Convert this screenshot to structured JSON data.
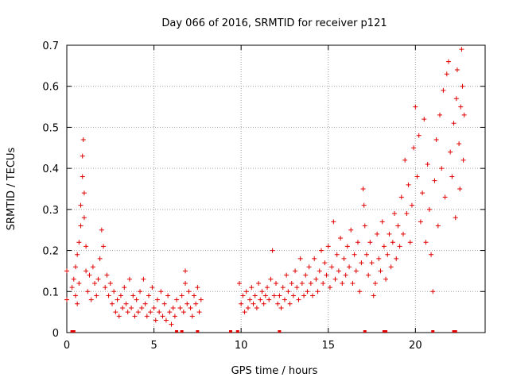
{
  "chart_data": {
    "type": "scatter",
    "title": "Day 066 of 2016, SRMTID for receiver p121",
    "xlabel": "GPS time / hours",
    "ylabel": "SRMTID / TECUs",
    "xlim": [
      0,
      24
    ],
    "ylim": [
      0,
      0.7
    ],
    "grid": true,
    "marker": "+",
    "color": "#e00000",
    "x_ticks": [
      0,
      5,
      10,
      15,
      20
    ],
    "x_tick_labels": [
      "0",
      "5",
      "10",
      "15",
      "20"
    ],
    "y_ticks": [
      0,
      0.1,
      0.2,
      0.3,
      0.4,
      0.5,
      0.6,
      0.7
    ],
    "y_tick_labels": [
      "0",
      "0.1",
      "0.2",
      "0.3",
      "0.4",
      "0.5",
      "0.6",
      "0.7"
    ],
    "series": [
      {
        "name": "SRMTID",
        "points": [
          [
            0.0,
            0.15
          ],
          [
            0.0,
            0.08
          ],
          [
            0.3,
            0.11
          ],
          [
            0.4,
            0.13
          ],
          [
            0.5,
            0.09
          ],
          [
            0.5,
            0.16
          ],
          [
            0.6,
            0.07
          ],
          [
            0.6,
            0.19
          ],
          [
            0.7,
            0.22
          ],
          [
            0.7,
            0.12
          ],
          [
            0.8,
            0.26
          ],
          [
            0.8,
            0.31
          ],
          [
            0.9,
            0.38
          ],
          [
            0.9,
            0.43
          ],
          [
            0.95,
            0.47
          ],
          [
            1.0,
            0.34
          ],
          [
            1.0,
            0.28
          ],
          [
            1.1,
            0.21
          ],
          [
            1.1,
            0.15
          ],
          [
            1.2,
            0.1
          ],
          [
            1.3,
            0.14
          ],
          [
            1.4,
            0.08
          ],
          [
            1.5,
            0.16
          ],
          [
            1.6,
            0.12
          ],
          [
            1.7,
            0.09
          ],
          [
            1.8,
            0.13
          ],
          [
            1.9,
            0.18
          ],
          [
            2.0,
            0.25
          ],
          [
            2.1,
            0.21
          ],
          [
            2.2,
            0.11
          ],
          [
            2.3,
            0.14
          ],
          [
            2.4,
            0.09
          ],
          [
            2.5,
            0.12
          ],
          [
            2.6,
            0.07
          ],
          [
            2.7,
            0.1
          ],
          [
            2.8,
            0.05
          ],
          [
            2.9,
            0.08
          ],
          [
            3.0,
            0.04
          ],
          [
            3.1,
            0.09
          ],
          [
            3.2,
            0.06
          ],
          [
            3.3,
            0.11
          ],
          [
            3.4,
            0.07
          ],
          [
            3.5,
            0.05
          ],
          [
            3.6,
            0.13
          ],
          [
            3.7,
            0.06
          ],
          [
            3.8,
            0.09
          ],
          [
            3.9,
            0.04
          ],
          [
            4.0,
            0.08
          ],
          [
            4.1,
            0.05
          ],
          [
            4.2,
            0.1
          ],
          [
            4.3,
            0.06
          ],
          [
            4.4,
            0.13
          ],
          [
            4.5,
            0.07
          ],
          [
            4.6,
            0.04
          ],
          [
            4.7,
            0.09
          ],
          [
            4.8,
            0.05
          ],
          [
            4.9,
            0.11
          ],
          [
            5.0,
            0.06
          ],
          [
            5.1,
            0.03
          ],
          [
            5.2,
            0.08
          ],
          [
            5.3,
            0.05
          ],
          [
            5.4,
            0.1
          ],
          [
            5.5,
            0.04
          ],
          [
            5.6,
            0.07
          ],
          [
            5.7,
            0.03
          ],
          [
            5.8,
            0.09
          ],
          [
            5.9,
            0.05
          ],
          [
            6.0,
            0.02
          ],
          [
            6.1,
            0.06
          ],
          [
            6.2,
            0.04
          ],
          [
            6.3,
            0.08
          ],
          [
            6.5,
            0.06
          ],
          [
            6.6,
            0.09
          ],
          [
            6.7,
            0.05
          ],
          [
            6.8,
            0.15
          ],
          [
            6.8,
            0.12
          ],
          [
            6.9,
            0.07
          ],
          [
            7.0,
            0.1
          ],
          [
            7.1,
            0.06
          ],
          [
            7.2,
            0.04
          ],
          [
            7.3,
            0.09
          ],
          [
            7.4,
            0.07
          ],
          [
            7.5,
            0.11
          ],
          [
            7.6,
            0.05
          ],
          [
            7.7,
            0.08
          ],
          [
            9.9,
            0.12
          ],
          [
            10.0,
            0.07
          ],
          [
            10.1,
            0.09
          ],
          [
            10.2,
            0.05
          ],
          [
            10.3,
            0.1
          ],
          [
            10.4,
            0.06
          ],
          [
            10.5,
            0.08
          ],
          [
            10.6,
            0.11
          ],
          [
            10.7,
            0.07
          ],
          [
            10.8,
            0.09
          ],
          [
            10.9,
            0.06
          ],
          [
            11.0,
            0.12
          ],
          [
            11.1,
            0.08
          ],
          [
            11.2,
            0.1
          ],
          [
            11.3,
            0.07
          ],
          [
            11.4,
            0.09
          ],
          [
            11.5,
            0.11
          ],
          [
            11.6,
            0.08
          ],
          [
            11.7,
            0.13
          ],
          [
            11.8,
            0.2
          ],
          [
            11.9,
            0.09
          ],
          [
            12.0,
            0.12
          ],
          [
            12.1,
            0.07
          ],
          [
            12.2,
            0.09
          ],
          [
            12.3,
            0.06
          ],
          [
            12.4,
            0.11
          ],
          [
            12.5,
            0.08
          ],
          [
            12.6,
            0.14
          ],
          [
            12.7,
            0.1
          ],
          [
            12.8,
            0.07
          ],
          [
            12.9,
            0.12
          ],
          [
            13.0,
            0.09
          ],
          [
            13.1,
            0.15
          ],
          [
            13.2,
            0.11
          ],
          [
            13.3,
            0.08
          ],
          [
            13.4,
            0.18
          ],
          [
            13.5,
            0.12
          ],
          [
            13.6,
            0.09
          ],
          [
            13.7,
            0.14
          ],
          [
            13.8,
            0.1
          ],
          [
            13.9,
            0.16
          ],
          [
            14.0,
            0.12
          ],
          [
            14.1,
            0.09
          ],
          [
            14.2,
            0.18
          ],
          [
            14.3,
            0.13
          ],
          [
            14.4,
            0.1
          ],
          [
            14.5,
            0.15
          ],
          [
            14.6,
            0.2
          ],
          [
            14.7,
            0.12
          ],
          [
            14.8,
            0.17
          ],
          [
            14.9,
            0.14
          ],
          [
            15.0,
            0.21
          ],
          [
            15.1,
            0.11
          ],
          [
            15.2,
            0.16
          ],
          [
            15.3,
            0.27
          ],
          [
            15.4,
            0.13
          ],
          [
            15.5,
            0.19
          ],
          [
            15.6,
            0.15
          ],
          [
            15.7,
            0.23
          ],
          [
            15.8,
            0.12
          ],
          [
            15.9,
            0.18
          ],
          [
            16.0,
            0.14
          ],
          [
            16.1,
            0.21
          ],
          [
            16.2,
            0.16
          ],
          [
            16.3,
            0.25
          ],
          [
            16.4,
            0.12
          ],
          [
            16.5,
            0.19
          ],
          [
            16.6,
            0.15
          ],
          [
            16.7,
            0.22
          ],
          [
            16.8,
            0.1
          ],
          [
            16.9,
            0.17
          ],
          [
            17.0,
            0.35
          ],
          [
            17.05,
            0.31
          ],
          [
            17.1,
            0.26
          ],
          [
            17.2,
            0.19
          ],
          [
            17.3,
            0.14
          ],
          [
            17.4,
            0.22
          ],
          [
            17.5,
            0.17
          ],
          [
            17.6,
            0.09
          ],
          [
            17.7,
            0.12
          ],
          [
            17.8,
            0.24
          ],
          [
            17.9,
            0.18
          ],
          [
            18.0,
            0.15
          ],
          [
            18.1,
            0.27
          ],
          [
            18.2,
            0.21
          ],
          [
            18.3,
            0.13
          ],
          [
            18.4,
            0.19
          ],
          [
            18.5,
            0.24
          ],
          [
            18.6,
            0.16
          ],
          [
            18.7,
            0.22
          ],
          [
            18.8,
            0.29
          ],
          [
            18.9,
            0.18
          ],
          [
            19.0,
            0.26
          ],
          [
            19.1,
            0.21
          ],
          [
            19.2,
            0.33
          ],
          [
            19.3,
            0.24
          ],
          [
            19.4,
            0.42
          ],
          [
            19.5,
            0.29
          ],
          [
            19.6,
            0.36
          ],
          [
            19.7,
            0.22
          ],
          [
            19.8,
            0.31
          ],
          [
            19.9,
            0.45
          ],
          [
            20.0,
            0.55
          ],
          [
            20.1,
            0.38
          ],
          [
            20.2,
            0.48
          ],
          [
            20.3,
            0.27
          ],
          [
            20.4,
            0.34
          ],
          [
            20.5,
            0.52
          ],
          [
            20.6,
            0.22
          ],
          [
            20.7,
            0.41
          ],
          [
            20.8,
            0.3
          ],
          [
            20.9,
            0.19
          ],
          [
            21.0,
            0.1
          ],
          [
            21.1,
            0.37
          ],
          [
            21.2,
            0.47
          ],
          [
            21.3,
            0.26
          ],
          [
            21.4,
            0.53
          ],
          [
            21.5,
            0.4
          ],
          [
            21.6,
            0.59
          ],
          [
            21.7,
            0.33
          ],
          [
            21.8,
            0.63
          ],
          [
            21.9,
            0.66
          ],
          [
            22.0,
            0.44
          ],
          [
            22.1,
            0.38
          ],
          [
            22.2,
            0.51
          ],
          [
            22.3,
            0.28
          ],
          [
            22.35,
            0.57
          ],
          [
            22.4,
            0.64
          ],
          [
            22.5,
            0.46
          ],
          [
            22.55,
            0.35
          ],
          [
            22.6,
            0.55
          ],
          [
            22.65,
            0.69
          ],
          [
            22.7,
            0.6
          ],
          [
            22.75,
            0.42
          ],
          [
            22.8,
            0.53
          ]
        ]
      }
    ],
    "baseline_marks_x": [
      0.3,
      0.4,
      6.3,
      6.6,
      7.5,
      9.4,
      9.8,
      12.2,
      17.1,
      18.2,
      18.3,
      21.0,
      22.2,
      22.3
    ]
  }
}
